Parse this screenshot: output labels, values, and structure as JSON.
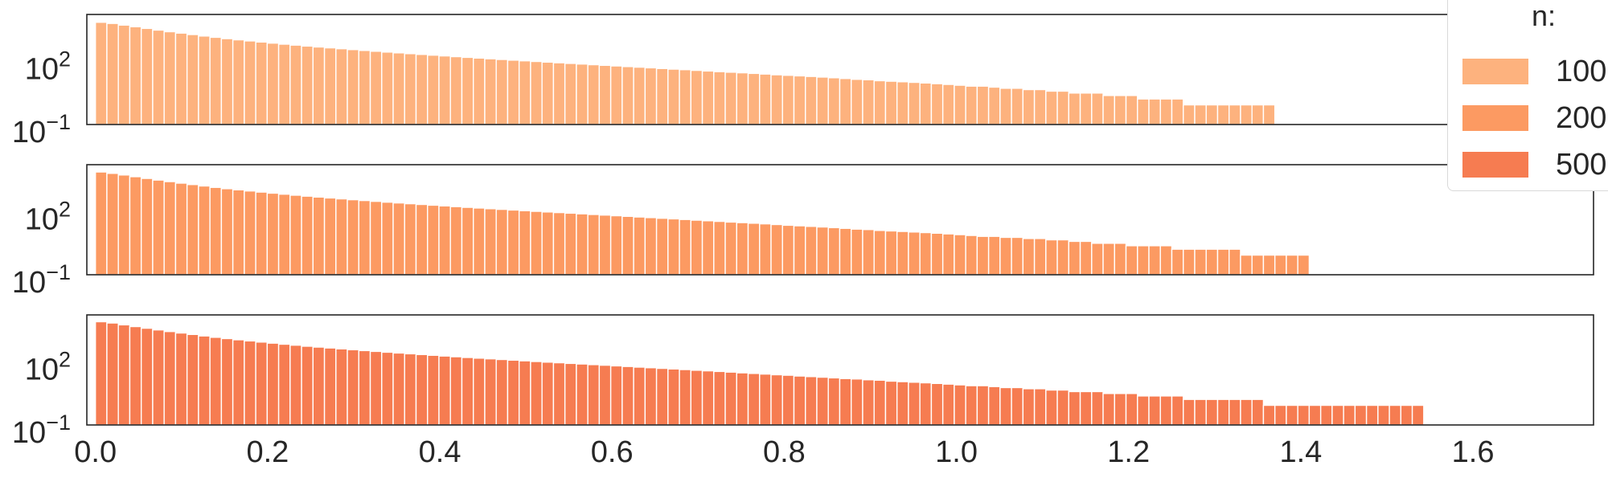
{
  "chart_data": {
    "type": "bar",
    "subtype": "histogram",
    "stacked_panels": 3,
    "y_scale": "log",
    "y_tick_labels": [
      "10^{-1}",
      "10^{2}"
    ],
    "x_tick_labels": [
      "0.0",
      "0.2",
      "0.4",
      "0.6",
      "0.8",
      "1.0",
      "1.2",
      "1.4",
      "1.6"
    ],
    "xlim": [
      -0.01,
      1.74
    ],
    "ylim": [
      0.1,
      40000
    ],
    "grid": false,
    "legend": {
      "title": "n:",
      "placement": "top-right (clipped)"
    },
    "bin_width": 0.0133,
    "panels": [
      {
        "name": "100",
        "color": "#fdb27e",
        "bin_start": 0.0,
        "counts": [
          16000,
          14000,
          11500,
          9500,
          7800,
          6400,
          5300,
          4500,
          3800,
          3200,
          2750,
          2350,
          2050,
          1800,
          1580,
          1390,
          1230,
          1100,
          985,
          885,
          800,
          722,
          652,
          590,
          536,
          487,
          444,
          405,
          370,
          339,
          311,
          285,
          262,
          241,
          222,
          205,
          189,
          175,
          162,
          150,
          139,
          129,
          120,
          111,
          103,
          96,
          89,
          83,
          77,
          71,
          66,
          62,
          57,
          53,
          49,
          46,
          43,
          40,
          37,
          34,
          32,
          30,
          28,
          26,
          24,
          22,
          20,
          19,
          17,
          16,
          15,
          14,
          13,
          12,
          11,
          10,
          9,
          9,
          8,
          7,
          7,
          6,
          6,
          5,
          5,
          4,
          4,
          4,
          3,
          3,
          3,
          2,
          2,
          2,
          2,
          1,
          1,
          1,
          1,
          1,
          1,
          1,
          1
        ]
      },
      {
        "name": "200",
        "color": "#fc9a62",
        "bin_start": 0.0,
        "counts": [
          17000,
          14500,
          12000,
          9800,
          8000,
          6600,
          5500,
          4600,
          3900,
          3300,
          2800,
          2400,
          2100,
          1840,
          1610,
          1420,
          1260,
          1120,
          1000,
          900,
          810,
          730,
          660,
          600,
          545,
          495,
          452,
          413,
          378,
          347,
          319,
          293,
          270,
          249,
          230,
          213,
          197,
          182,
          169,
          157,
          146,
          136,
          126,
          117,
          109,
          101,
          94,
          87,
          81,
          75,
          70,
          65,
          60,
          56,
          52,
          48,
          45,
          42,
          39,
          36,
          33,
          31,
          29,
          27,
          25,
          23,
          21,
          20,
          18,
          17,
          16,
          15,
          14,
          13,
          12,
          11,
          10,
          9,
          9,
          8,
          8,
          7,
          7,
          6,
          6,
          5,
          5,
          4,
          4,
          4,
          3,
          3,
          3,
          3,
          2,
          2,
          2,
          2,
          2,
          2,
          1,
          1,
          1,
          1,
          1,
          1
        ]
      },
      {
        "name": "500",
        "color": "#f67c51",
        "bin_start": 0.0,
        "counts": [
          18000,
          15500,
          12500,
          10200,
          8400,
          6900,
          5700,
          4800,
          4050,
          3400,
          2900,
          2500,
          2170,
          1900,
          1660,
          1460,
          1290,
          1150,
          1020,
          920,
          830,
          748,
          676,
          612,
          556,
          505,
          460,
          420,
          384,
          352,
          323,
          297,
          273,
          252,
          233,
          215,
          199,
          184,
          170,
          158,
          147,
          136,
          127,
          118,
          110,
          102,
          95,
          88,
          82,
          76,
          71,
          66,
          61,
          57,
          53,
          49,
          45,
          42,
          39,
          36,
          34,
          31,
          29,
          27,
          25,
          23,
          22,
          20,
          19,
          17,
          16,
          15,
          14,
          13,
          12,
          11,
          10,
          10,
          9,
          8,
          8,
          7,
          7,
          6,
          6,
          5,
          5,
          5,
          4,
          4,
          4,
          3,
          3,
          3,
          3,
          2,
          2,
          2,
          2,
          2,
          2,
          2,
          1,
          1,
          1,
          1,
          1,
          1,
          1,
          1,
          1,
          1,
          1,
          1,
          1,
          1
        ]
      }
    ]
  }
}
